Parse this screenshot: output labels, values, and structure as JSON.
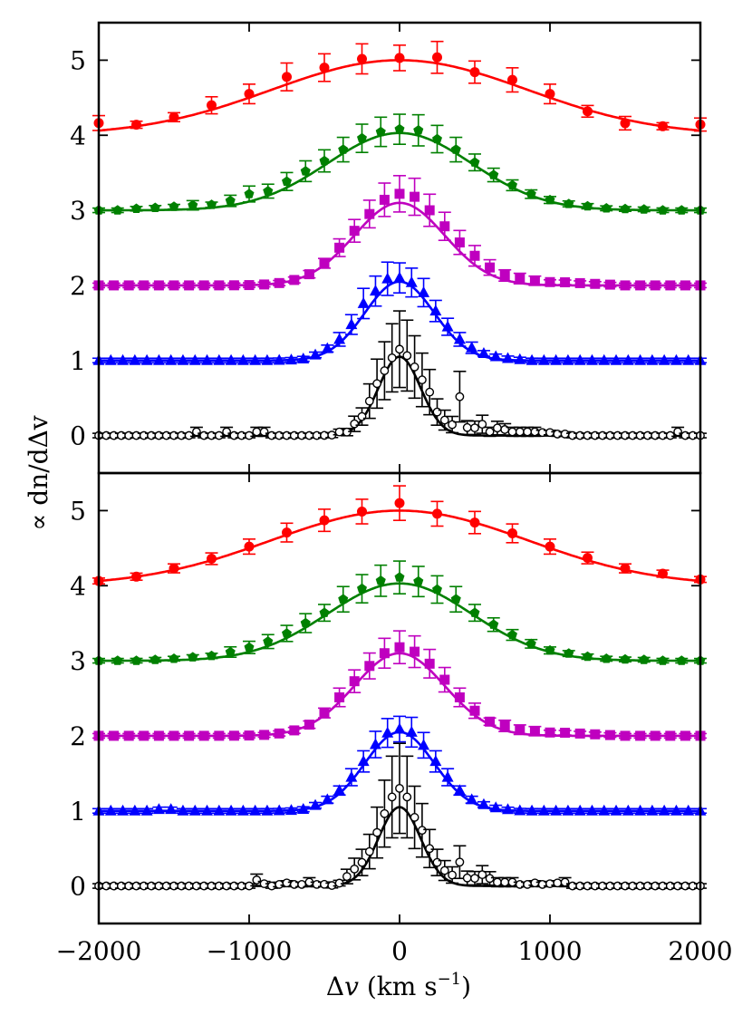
{
  "chart_data": {
    "type": "scatter",
    "xlabel": "Δv (km s⁻¹)",
    "xlabel_parts": {
      "delta": "Δ",
      "var": "v",
      "unit_open": " (km s",
      "exponent": "−1",
      "unit_close": ")"
    },
    "ylabel": "∝ dn/dΔv",
    "xlim": [
      -2000,
      2000
    ],
    "xticks": [
      -2000,
      -1000,
      0,
      1000,
      2000
    ],
    "xtick_labels": [
      "−2000",
      "−1000",
      "0",
      "1000",
      "2000"
    ],
    "legend": "none",
    "grid": false,
    "panels": [
      {
        "name": "top",
        "ylim": [
          -0.5,
          5.5
        ],
        "yticks": [
          0,
          1,
          2,
          3,
          4,
          5
        ],
        "ytick_labels": [
          "0",
          "1",
          "2",
          "3",
          "4",
          "5"
        ],
        "series": [
          {
            "name": "red",
            "color": "#ff0000",
            "marker": "circle",
            "offset": 4,
            "sigma": 850,
            "amp": 1.0,
            "step": 250,
            "dy": [
              0.1,
              0.02,
              0.03,
              0.06,
              0.05,
              0.1,
              0.06,
              0.06,
              0.03,
              0.08,
              0,
              0.06,
              0.05,
              -0.02,
              -0.05,
              0.0,
              0.08
            ]
          },
          {
            "name": "green",
            "color": "#008000",
            "marker": "pentagon",
            "offset": 3,
            "sigma": 480,
            "amp": 1.03,
            "step": 125,
            "dy": [
              0,
              0,
              0.02,
              0.03,
              0.04,
              0.05,
              0.04,
              0.06,
              0.1,
              0.06,
              0.08,
              0.08,
              0.06,
              0.05,
              0.06,
              0.05,
              0.05,
              0.07,
              0.05,
              0.05,
              0.04,
              0.03,
              0.03,
              0.02,
              0.02,
              0.02,
              0.02,
              0.01,
              0.01,
              0.01,
              0,
              0,
              0
            ]
          },
          {
            "name": "magenta",
            "color": "#bf00bf",
            "marker": "square",
            "offset": 2,
            "sigma": 300,
            "amp": 1.1,
            "step": 100,
            "dy": [
              0,
              0,
              0,
              0,
              0,
              0,
              0,
              0,
              0,
              0,
              0,
              0,
              0,
              0,
              0,
              0.02,
              0.05,
              0.06,
              0.07,
              0.1,
              0.12,
              0.14,
              0.12,
              0.12,
              0.12,
              0.12,
              0.09,
              0.06,
              0.06,
              0.05,
              0.04,
              0.04,
              0.03,
              0.02,
              0.01,
              0,
              0,
              0,
              0,
              0,
              0
            ]
          },
          {
            "name": "blue",
            "color": "#0000ff",
            "marker": "triangle",
            "offset": 1,
            "sigma": 230,
            "amp": 1.05,
            "step": 80,
            "dy": [
              0,
              0,
              0,
              0,
              0,
              0,
              0,
              0,
              0,
              0,
              0,
              0,
              0,
              0,
              0,
              0,
              0,
              0,
              0.02,
              0.04,
              0.05,
              0.08,
              0.15,
              0.1,
              0.1,
              0.05,
              0.05,
              0.08,
              0.05,
              0.05,
              0.05,
              0.05,
              0.04,
              0.03,
              0.02,
              0.01,
              0,
              0,
              0,
              0,
              0,
              0,
              0,
              0,
              0,
              0,
              0,
              0,
              0,
              0,
              0
            ]
          },
          {
            "name": "black",
            "color": "#000000",
            "marker": "open-circle",
            "offset": 0,
            "sigma": 140,
            "amp": 1.05,
            "step": 50,
            "dy": [
              0,
              0,
              0,
              0,
              0,
              0,
              0,
              0,
              0,
              0,
              0,
              0,
              0,
              0.05,
              0,
              0,
              0,
              0.05,
              0,
              0,
              0,
              0.05,
              0.05,
              0,
              0,
              0,
              0,
              0,
              0,
              0,
              0,
              0,
              0.03,
              0,
              0.05,
              0.04,
              0.08,
              0.1,
              0.05,
              0.05,
              0.1,
              0.08,
              0.1,
              0.15,
              0.2,
              0.1,
              0.1,
              0.1,
              0.5,
              0.1,
              0.1,
              0.15,
              0.05,
              0.1,
              0.08,
              0.05,
              0.05,
              0.05,
              0.05,
              0.04,
              0.04,
              0.02,
              0.02,
              0,
              0,
              0,
              0,
              0,
              0,
              0,
              0,
              0,
              0,
              0,
              0,
              0,
              0,
              0.05,
              0,
              0,
              0,
              0,
              0,
              0,
              0,
              0,
              0,
              0,
              0,
              0,
              0,
              0,
              0
            ]
          }
        ]
      },
      {
        "name": "bottom",
        "ylim": [
          -0.5,
          5.5
        ],
        "yticks": [
          0,
          1,
          2,
          3,
          4,
          5
        ],
        "ytick_labels": [
          "0",
          "1",
          "2",
          "3",
          "4",
          "5"
        ],
        "series": [
          {
            "name": "red",
            "color": "#ff0000",
            "marker": "circle",
            "offset": 4,
            "sigma": 850,
            "amp": 1.0,
            "step": 250,
            "dy": [
              0,
              0,
              0.02,
              0.02,
              0.02,
              0.03,
              0.03,
              0.03,
              0.1,
              0,
              0,
              0.02,
              0.02,
              0.03,
              0.02,
              0.04,
              0.02
            ]
          },
          {
            "name": "green",
            "color": "#008000",
            "marker": "pentagon",
            "offset": 3,
            "sigma": 480,
            "amp": 1.03,
            "step": 125,
            "dy": [
              0,
              0,
              0,
              0.01,
              0.02,
              0.03,
              0.03,
              0.05,
              0.06,
              0.06,
              0.06,
              0.06,
              0.04,
              0.06,
              0.06,
              0.07,
              0.08,
              0.06,
              0.05,
              0.06,
              0.04,
              0.04,
              0.04,
              0.03,
              0.02,
              0.03,
              0.02,
              0.01,
              0.01,
              0.01,
              0,
              0,
              0
            ]
          },
          {
            "name": "magenta",
            "color": "#bf00bf",
            "marker": "square",
            "offset": 2,
            "sigma": 300,
            "amp": 1.1,
            "step": 100,
            "dy": [
              0,
              0,
              0,
              0,
              0,
              0,
              0,
              0,
              0,
              0,
              0,
              0,
              0,
              0,
              0,
              0.03,
              0.06,
              0.06,
              0.05,
              0.06,
              0.08,
              0.08,
              0.08,
              0.08,
              0.06,
              0.06,
              0.04,
              0.06,
              0.05,
              0.05,
              0.04,
              0.04,
              0.03,
              0.02,
              0.01,
              0,
              0,
              0,
              0,
              0,
              0
            ]
          },
          {
            "name": "blue",
            "color": "#0000ff",
            "marker": "triangle",
            "offset": 1,
            "sigma": 230,
            "amp": 1.05,
            "step": 80,
            "dy": [
              0,
              0,
              0,
              0,
              0,
              0.02,
              0.02,
              0,
              0,
              0,
              0,
              0,
              0,
              0,
              0,
              0,
              0,
              0,
              0.02,
              0.03,
              0.04,
              0.05,
              0.05,
              0.06,
              0.05,
              0.04,
              0.06,
              0.05,
              0.05,
              0.05,
              0.04,
              0.03,
              0.03,
              0.02,
              0.01,
              0,
              0,
              0,
              0,
              0,
              0,
              0,
              0,
              0,
              0,
              0,
              0,
              0,
              0,
              0,
              0
            ]
          },
          {
            "name": "black",
            "color": "#000000",
            "marker": "open-circle",
            "offset": 0,
            "sigma": 140,
            "amp": 1.05,
            "step": 50,
            "dy": [
              0,
              0,
              0,
              0,
              0,
              0,
              0,
              0,
              0,
              0,
              0,
              0,
              0,
              0,
              0,
              0,
              0,
              0,
              0,
              0,
              0,
              0.08,
              0.03,
              0,
              0.02,
              0.04,
              0.02,
              0.02,
              0.05,
              0.02,
              0.02,
              0,
              0.02,
              0.08,
              0.12,
              0.1,
              0.08,
              0.12,
              0.15,
              0.2,
              0.25,
              0.2,
              0.1,
              0.15,
              0.12,
              0.1,
              0.1,
              0.1,
              0.3,
              0.1,
              0.1,
              0.15,
              0.1,
              0.05,
              0.05,
              0.05,
              0.02,
              0.02,
              0.04,
              0.02,
              0.03,
              0.04,
              0.05,
              0,
              0,
              0,
              0,
              0,
              0,
              0,
              0,
              0,
              0,
              0,
              0,
              0,
              0,
              0,
              0,
              0,
              0,
              0,
              0,
              0,
              0.05,
              0,
              0,
              0,
              0,
              0,
              0,
              0,
              0,
              0,
              0
            ]
          }
        ]
      }
    ]
  }
}
